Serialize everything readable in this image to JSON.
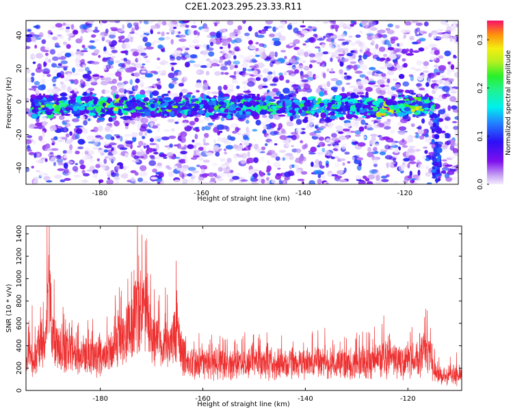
{
  "title": "C2E1.2023.295.23.33.R11",
  "chart_data": [
    {
      "type": "heatmap",
      "xlabel": "Height of straight line (km)",
      "ylabel": "Frequency (Hz)",
      "xlim": [
        -194.5,
        -109.5
      ],
      "ylim": [
        -50,
        49
      ],
      "xticks": [
        -180,
        -160,
        -140,
        -120
      ],
      "yticks": [
        -40,
        -20,
        0,
        20,
        40
      ],
      "band": {
        "center_hz": -3,
        "half_width_hz": 9,
        "description_points": [
          {
            "x": -190,
            "y": -4,
            "value": 0.22
          },
          {
            "x": -177,
            "y": -3,
            "value": 0.24
          },
          {
            "x": -165,
            "y": -5,
            "value": 0.21
          },
          {
            "x": -150,
            "y": -2,
            "value": 0.18
          },
          {
            "x": -138,
            "y": -4,
            "value": 0.2
          },
          {
            "x": -124,
            "y": -3,
            "value": 0.3
          },
          {
            "x": -118,
            "y": -5,
            "value": 0.24
          }
        ]
      },
      "colorbar": {
        "label": "Normalized spectral amplitude",
        "range": [
          0,
          0.34
        ],
        "ticks": [
          "0.0",
          "0.1",
          "0.2",
          "0.3"
        ],
        "tick_values": [
          0,
          0.1,
          0.2,
          0.3
        ]
      }
    },
    {
      "type": "line",
      "xlabel": "Height of straight line (km)",
      "ylabel": "SNR (10 * v/v)",
      "xlim": [
        -194.5,
        -109.5
      ],
      "ylim": [
        0,
        1470
      ],
      "xticks": [
        -180,
        -160,
        -140,
        -120
      ],
      "yticks": [
        0,
        200,
        400,
        600,
        800,
        1000,
        1200,
        1400
      ],
      "color": "#ee3030",
      "series": [
        {
          "x": [
            -194.5,
            -193,
            -191,
            -190,
            -189.5,
            -188,
            -186,
            -184,
            -182,
            -180,
            -178,
            -176,
            -174,
            -172.5,
            -171,
            -170,
            -168,
            -166,
            -165,
            -164,
            -162,
            -160,
            -158,
            -156,
            -154,
            -152,
            -150,
            -148,
            -146,
            -144,
            -142,
            -140,
            -138,
            -136,
            -134,
            -132,
            -130,
            -128,
            -126,
            -124,
            -122,
            -120,
            -118,
            -116,
            -115,
            -114,
            -112,
            -110,
            -109.5
          ],
          "values": [
            330,
            300,
            520,
            980,
            560,
            400,
            380,
            330,
            340,
            300,
            380,
            480,
            640,
            800,
            760,
            520,
            420,
            480,
            600,
            330,
            270,
            250,
            260,
            240,
            250,
            260,
            300,
            270,
            260,
            250,
            255,
            260,
            280,
            260,
            250,
            260,
            270,
            260,
            300,
            320,
            300,
            280,
            300,
            380,
            220,
            160,
            150,
            160,
            160
          ],
          "peaks": [
            {
              "x": -193.3,
              "y": 760
            },
            {
              "x": -190.4,
              "y": 1470
            },
            {
              "x": -189.6,
              "y": 960
            },
            {
              "x": -181.5,
              "y": 640
            },
            {
              "x": -178.7,
              "y": 660
            },
            {
              "x": -173.5,
              "y": 930
            },
            {
              "x": -171.2,
              "y": 1340
            },
            {
              "x": -170.2,
              "y": 1040
            },
            {
              "x": -167.3,
              "y": 920
            },
            {
              "x": -165.2,
              "y": 1160
            },
            {
              "x": -147.5,
              "y": 520
            },
            {
              "x": -136.2,
              "y": 560
            },
            {
              "x": -126.5,
              "y": 570
            },
            {
              "x": -124.7,
              "y": 670
            },
            {
              "x": -117.7,
              "y": 510
            },
            {
              "x": -116.5,
              "y": 730
            },
            {
              "x": -115.6,
              "y": 560
            },
            {
              "x": -110.5,
              "y": 340
            }
          ]
        }
      ]
    }
  ]
}
